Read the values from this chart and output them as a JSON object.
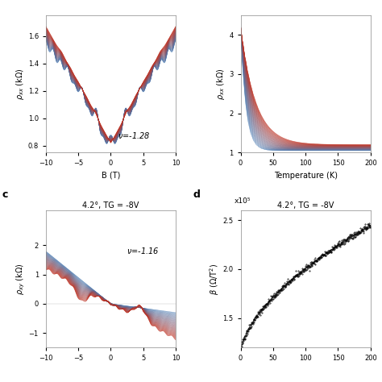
{
  "panel_a": {
    "xlabel": "B (T)",
    "xlim": [
      -10,
      10
    ],
    "ylim": [
      0.75,
      1.75
    ],
    "yticks": [
      0.8,
      1.0,
      1.2,
      1.4,
      1.6
    ],
    "xticks": [
      -10,
      -5,
      0,
      5,
      10
    ],
    "annotation": "v=-1.28",
    "n_traces": 50
  },
  "panel_b": {
    "xlabel": "Temperature (K)",
    "xlim": [
      0,
      200
    ],
    "ylim": [
      1.0,
      4.5
    ],
    "yticks": [
      1,
      2,
      3,
      4
    ],
    "xticks": [
      0,
      50,
      100,
      150,
      200
    ],
    "n_traces": 50
  },
  "panel_c": {
    "title": "4.2°, TG = -8V",
    "xlim": [
      -10,
      10
    ],
    "ylim": [
      -1.5,
      3.2
    ],
    "yticks": [
      -1,
      0,
      1,
      2
    ],
    "xticks": [
      -10,
      -5,
      0,
      5,
      10
    ],
    "annotation": "v=-1.16",
    "n_traces": 50
  },
  "panel_d": {
    "title": "4.2°, TG = -8V",
    "xlim": [
      0,
      200
    ],
    "ylim": [
      1.2,
      2.6
    ],
    "yticks": [
      1.5,
      2.0,
      2.5
    ],
    "xticks": [
      0,
      50,
      100,
      150,
      200
    ],
    "scale_label": "x10⁵"
  },
  "color_cold": "#4a7db5",
  "color_hot": "#c03020",
  "bg_color": "#ffffff"
}
